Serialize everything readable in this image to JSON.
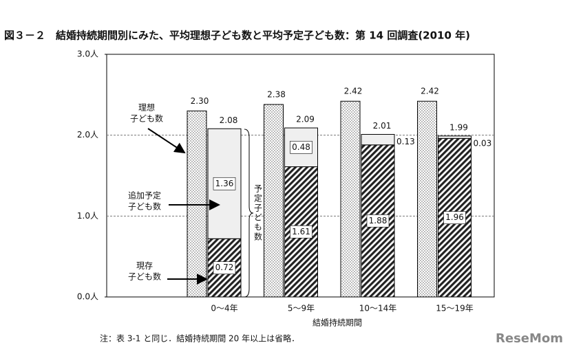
{
  "chart_data": {
    "type": "stacked-bar-pair",
    "title": "図３－２　結婚持続期間別にみた、平均理想子ども数と平均予定子ども数：第 14 回調査(2010 年)",
    "categories": [
      "0～4年",
      "5～9年",
      "10～14年",
      "15～19年"
    ],
    "x_label": "結婚持続期間",
    "ideal": {
      "color": "#555555",
      "values": [
        2.3,
        2.38,
        2.42,
        2.42
      ],
      "value_labels": [
        "2.30",
        "2.38",
        "2.42",
        "2.42"
      ]
    },
    "series": [
      {
        "color": "#222222",
        "values": [
          0.72,
          1.61,
          1.88,
          1.96
        ]
      },
      {
        "color": "#efefef",
        "values": [
          1.36,
          0.48,
          0.13,
          0.03
        ]
      }
    ],
    "planned_totals": {
      "values": [
        2.08,
        2.09,
        2.01,
        1.99
      ]
    },
    "ylim": [
      0,
      3
    ],
    "yticks": [
      {
        "value": 0,
        "label": "0.0人"
      },
      {
        "value": 1,
        "label": "1.0人"
      },
      {
        "value": 2,
        "label": "2.0人"
      },
      {
        "value": 3,
        "label": "3.0人"
      }
    ],
    "grid": true,
    "annotations": [
      {
        "lines": [
          "理想",
          "子ども数"
        ]
      },
      {
        "lines": [
          "追加予定",
          "子ども数"
        ]
      },
      {
        "lines": [
          "現存",
          "子ども数"
        ]
      }
    ],
    "brace_label": "予定子ども数",
    "note": "注：表 3-1 と同じ．結婚持続期間 20 年以上は省略．",
    "watermark": "ReseMom"
  }
}
